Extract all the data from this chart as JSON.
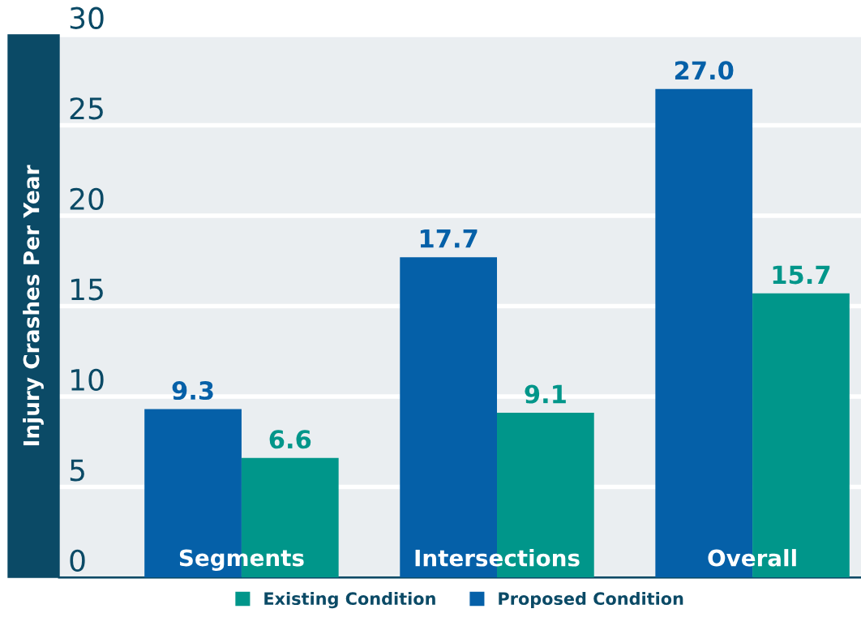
{
  "chart_data": {
    "type": "bar",
    "ylabel": "Injury Crashes Per Year",
    "categories": [
      "Segments",
      "Intersections",
      "Overall"
    ],
    "series": [
      {
        "name": "Proposed Condition",
        "color": "#0560a8",
        "values": [
          9.3,
          17.7,
          27.0
        ],
        "value_labels": [
          "9.3",
          "17.7",
          "27.0"
        ]
      },
      {
        "name": "Existing Condition",
        "color": "#00968a",
        "values": [
          6.6,
          9.1,
          15.7
        ],
        "value_labels": [
          "6.6",
          "9.1",
          "15.7"
        ]
      }
    ],
    "ylim": [
      0,
      30
    ],
    "yticks": [
      0,
      5,
      10,
      15,
      20,
      25,
      30
    ],
    "grid": "y",
    "legend": "bottom"
  }
}
